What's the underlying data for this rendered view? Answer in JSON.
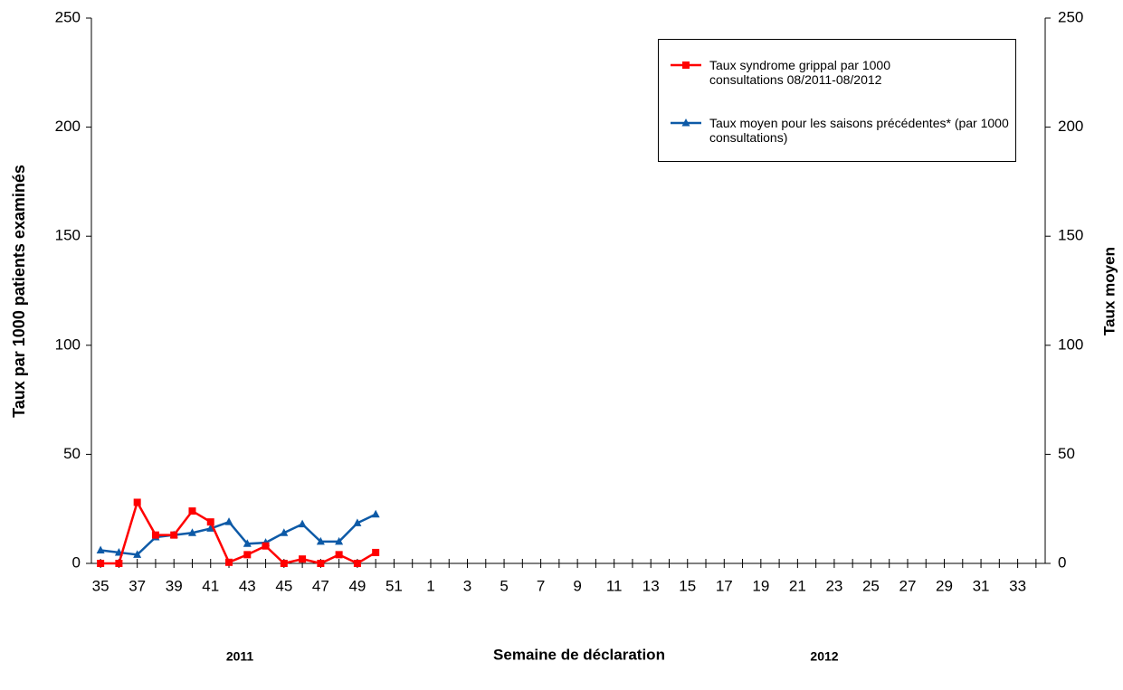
{
  "chart_data": {
    "type": "line",
    "x_label": "Semaine de déclaration",
    "y_label": "Taux par 1000 patients examinés",
    "y2_label": "Taux moyen",
    "annotations": [
      "2011",
      "2012"
    ],
    "categories": [
      35,
      null,
      37,
      null,
      39,
      null,
      41,
      null,
      43,
      null,
      45,
      null,
      47,
      null,
      49,
      null,
      51,
      null,
      1,
      null,
      3,
      null,
      5,
      null,
      7,
      null,
      9,
      null,
      11,
      null,
      13,
      null,
      15,
      null,
      17,
      null,
      19,
      null,
      21,
      null,
      23,
      null,
      25,
      null,
      27,
      null,
      29,
      null,
      31,
      null,
      33,
      null
    ],
    "series": [
      {
        "name": "Taux syndrome grippal par 1000 consultations 08/2011-08/2012",
        "color": "#ff0000",
        "marker": "square",
        "values": [
          0,
          0,
          28,
          13,
          13,
          24,
          19,
          0.5,
          4,
          8,
          0,
          2,
          0,
          4,
          0,
          5,
          null,
          null,
          null,
          null,
          null,
          null,
          null,
          null,
          null,
          null,
          null,
          null,
          null,
          null,
          null,
          null,
          null,
          null,
          null,
          null,
          null,
          null,
          null,
          null,
          null,
          null,
          null,
          null,
          null,
          null,
          null,
          null,
          null,
          null,
          null,
          null
        ]
      },
      {
        "name": "Taux moyen pour les saisons précédentes* (par 1000 consultations)",
        "color": "#0d5aa7",
        "marker": "triangle",
        "values": [
          6,
          5,
          4,
          12,
          13,
          14,
          16,
          19,
          9,
          9.5,
          14,
          18,
          10,
          10,
          18.5,
          22.5,
          null,
          null,
          null,
          null,
          null,
          null,
          null,
          null,
          null,
          null,
          null,
          null,
          null,
          null,
          null,
          null,
          null,
          null,
          null,
          null,
          null,
          null,
          null,
          null,
          null,
          null,
          null,
          null,
          null,
          null,
          null,
          null,
          null,
          null,
          null,
          null
        ]
      }
    ],
    "ylim": [
      0,
      250
    ],
    "yticks": [
      0,
      50,
      100,
      150,
      200,
      250
    ],
    "y2lim": [
      0,
      250
    ],
    "y2ticks": [
      0,
      50,
      100,
      150,
      200,
      250
    ],
    "grid": false,
    "legend": "upper right"
  }
}
